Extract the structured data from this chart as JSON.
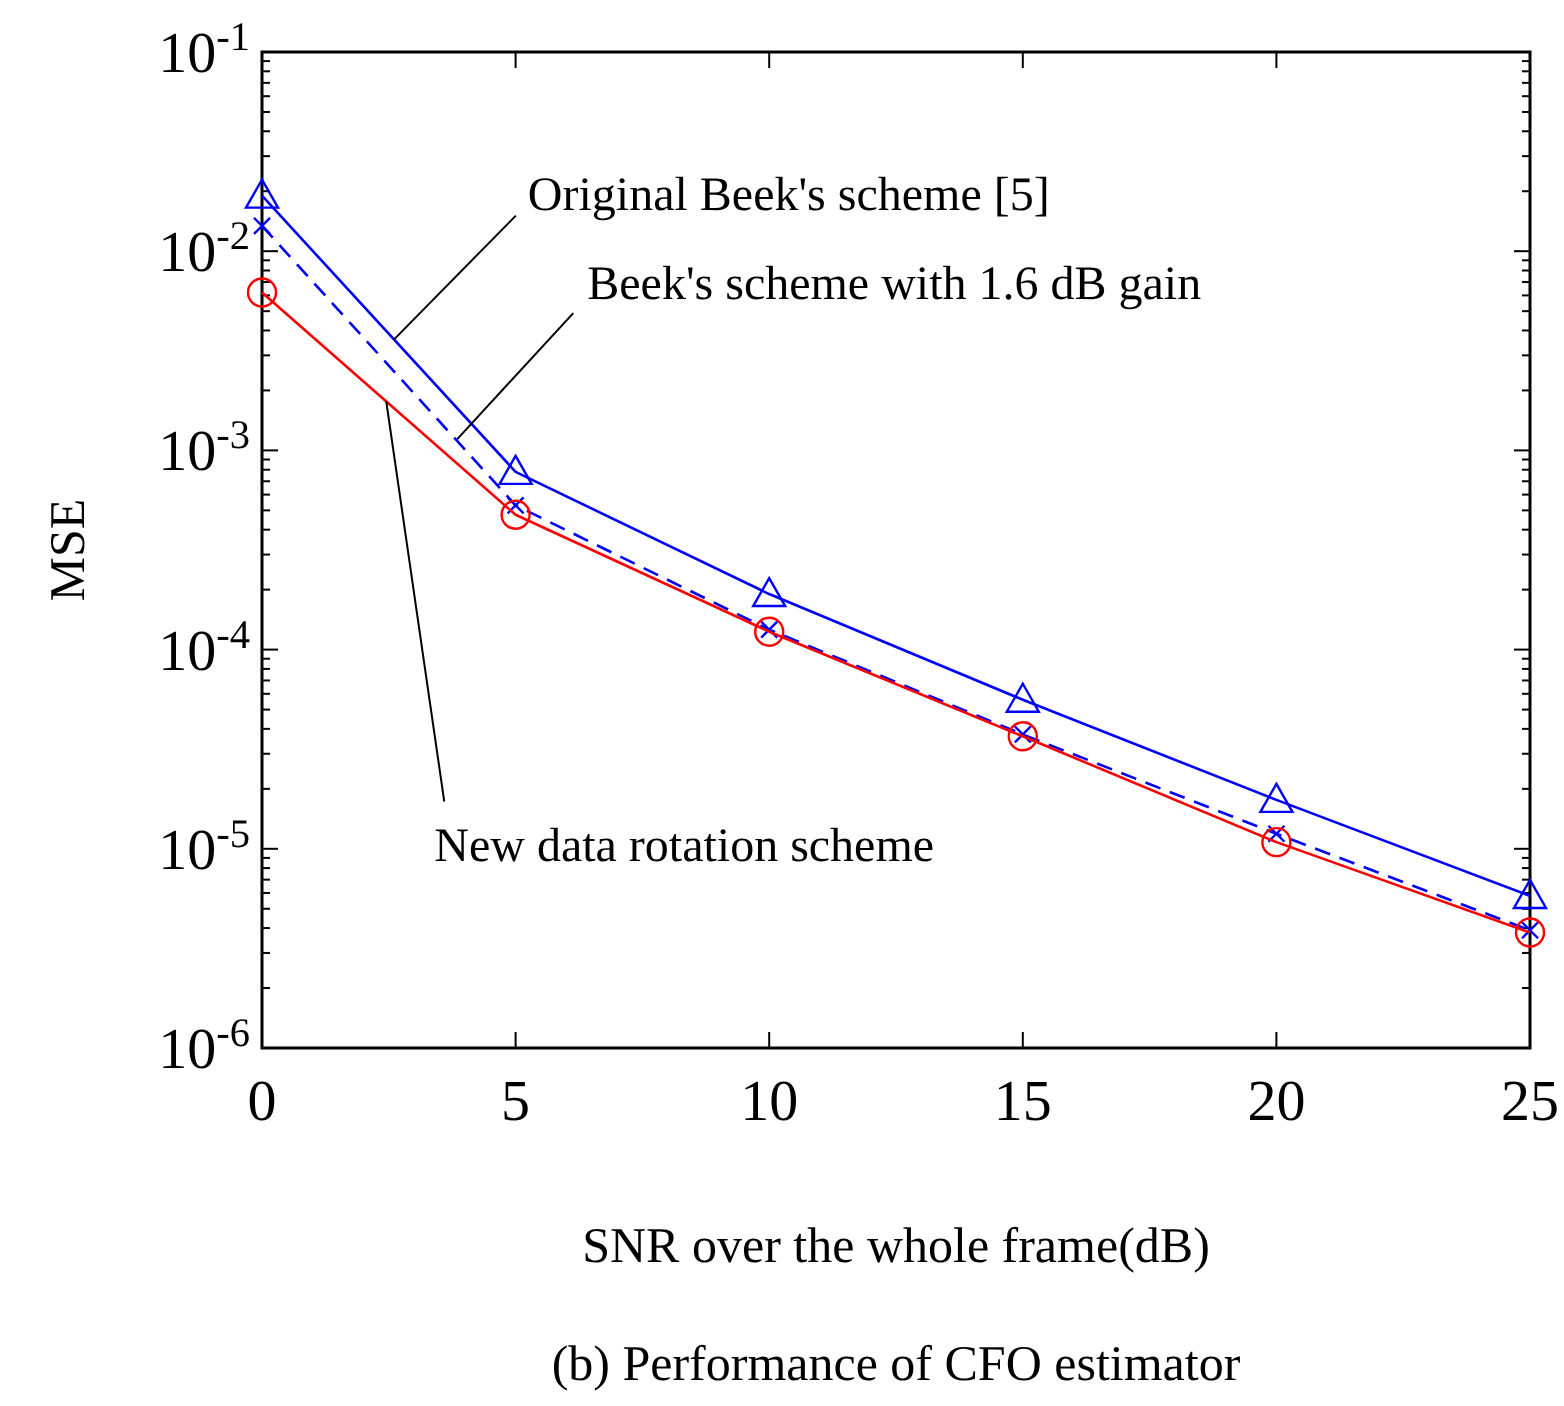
{
  "chart_data": {
    "type": "line",
    "xlabel": "SNR over the whole frame(dB)",
    "ylabel": "MSE",
    "log": "y",
    "grid": false,
    "x": [
      0,
      5,
      10,
      15,
      20,
      25
    ],
    "xlim": [
      0,
      25
    ],
    "xticks": [
      0,
      5,
      10,
      15,
      20,
      25
    ],
    "ylim": [
      1e-06,
      0.1
    ],
    "yticks": [
      {
        "value": 1e-06,
        "label": "10$^{-6}$"
      },
      {
        "value": 1e-05,
        "label": "10$^{-5}$"
      },
      {
        "value": 0.0001,
        "label": "10$^{-4}$"
      },
      {
        "value": 0.001,
        "label": "10$^{-3}$"
      },
      {
        "value": 0.01,
        "label": "10$^{-2}$"
      },
      {
        "value": 0.1,
        "label": "10$^{-1}$"
      }
    ],
    "series": [
      {
        "color": "#0000ff",
        "marker": "triangle",
        "line_style": "solid",
        "values": [
          0.019,
          0.00078,
          0.00019,
          5.6e-05,
          1.76e-05,
          5.8e-06
        ]
      },
      {
        "color": "#0000ff",
        "marker": "cross",
        "line_style": "dashed",
        "values": [
          0.0134,
          0.00053,
          0.000126,
          3.75e-05,
          1.19e-05,
          3.9e-06
        ]
      },
      {
        "color": "#ff0000",
        "marker": "circle",
        "line_style": "solid",
        "values": [
          0.0062,
          0.000475,
          0.000123,
          3.67e-05,
          1.08e-05,
          3.8e-06
        ]
      }
    ],
    "annotations": [
      {
        "text": "Original Beek's scheme [5]",
        "x": 2.6,
        "y": 0.0036
      },
      {
        "text": "Beek's scheme with 1.6 dB gain",
        "x": 3.85,
        "y": 0.00114
      },
      {
        "text": "New data rotation scheme",
        "x": 2.45,
        "y": 0.00176
      },
      "(b) Performance of CFO estimator"
    ]
  }
}
